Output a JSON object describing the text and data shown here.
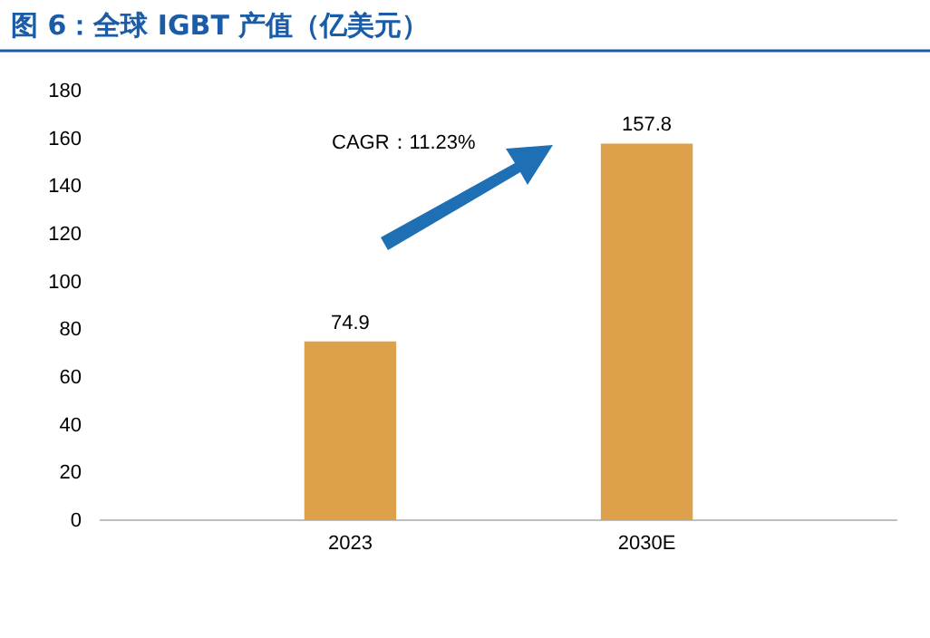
{
  "chart_data": {
    "type": "bar",
    "title": "图 6：全球 IGBT 产值（亿美元）",
    "categories": [
      "2023",
      "2030E"
    ],
    "values": [
      74.9,
      157.8
    ],
    "color": "#dda04b",
    "ylim": [
      0,
      180
    ],
    "yticks": [
      0,
      20,
      40,
      60,
      80,
      100,
      120,
      140,
      160,
      180
    ],
    "data_labels": true,
    "annotations": [
      "CAGR：11.23%"
    ]
  }
}
